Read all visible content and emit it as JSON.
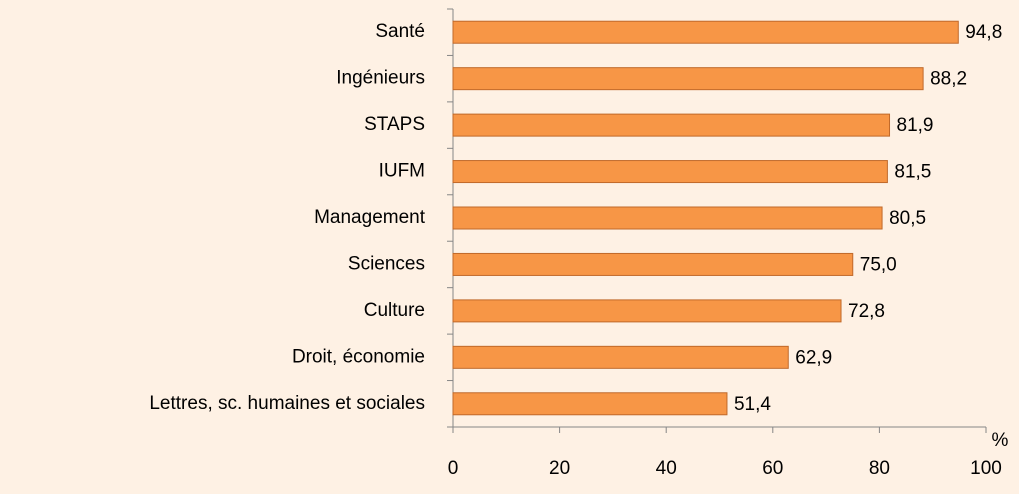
{
  "chart_data": {
    "type": "bar",
    "orientation": "horizontal",
    "categories": [
      "Santé",
      "Ingénieurs",
      "STAPS",
      "IUFM",
      "Management",
      "Sciences",
      "Culture",
      "Droit, économie",
      "Lettres, sc. humaines et sociales"
    ],
    "values": [
      94.8,
      88.2,
      81.9,
      81.5,
      80.5,
      75.0,
      72.8,
      62.9,
      51.4
    ],
    "value_labels": [
      "94,8",
      "88,2",
      "81,9",
      "81,5",
      "80,5",
      "75,0",
      "72,8",
      "62,9",
      "51,4"
    ],
    "color": "#f79646",
    "x_label": "%",
    "xlim": [
      0,
      100
    ],
    "xticks": [
      0,
      20,
      40,
      60,
      80,
      100
    ],
    "grid": false
  }
}
